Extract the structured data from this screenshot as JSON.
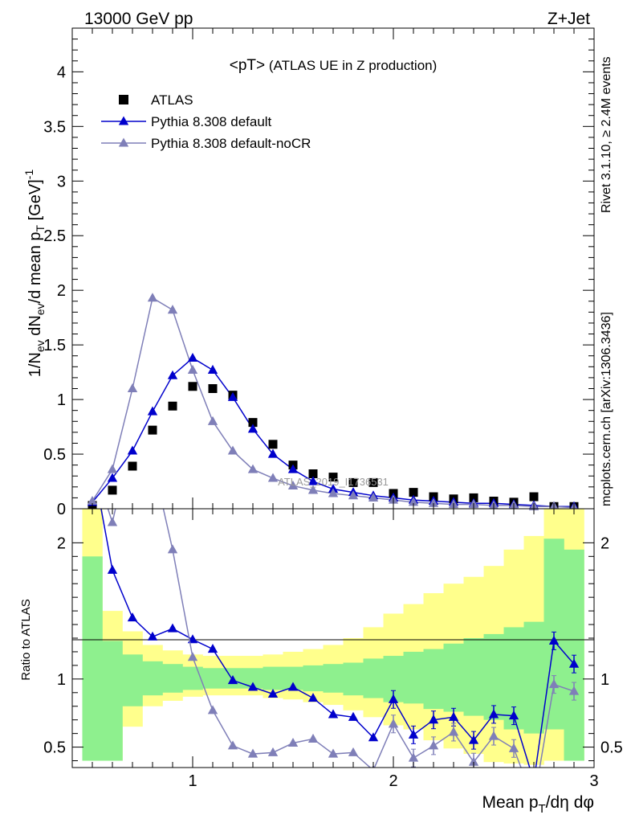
{
  "header": {
    "left": "13000 GeV pp",
    "right": "Z+Jet"
  },
  "side_labels": {
    "rivet": "Rivet 3.1.10, ≥ 2.4M events",
    "mcplots": "mcplots.cern.ch [arXiv:1306.3436]"
  },
  "chart_data": [
    {
      "type": "scatter",
      "panel": "main",
      "title": "<pT> (ATLAS UE in Z production)",
      "xlabel": "Mean p_T/dη dφ",
      "ylabel": "1/N_ev dN_ev/d mean p_T [GeV]^-1",
      "xlim": [
        0.4,
        3.0
      ],
      "ylim": [
        0,
        4.4
      ],
      "yticks": [
        0,
        0.5,
        1,
        1.5,
        2,
        2.5,
        3,
        3.5,
        4
      ],
      "ytick_labels": [
        "0",
        "0.5",
        "1",
        "1.5",
        "2",
        "2.5",
        "3",
        "3.5",
        "4"
      ],
      "watermark": "ATLAS_2019_I1736531",
      "legend_position": "top-left",
      "x": [
        0.5,
        0.6,
        0.7,
        0.8,
        0.9,
        1.0,
        1.1,
        1.2,
        1.3,
        1.4,
        1.5,
        1.6,
        1.7,
        1.8,
        1.9,
        2.0,
        2.1,
        2.2,
        2.3,
        2.4,
        2.5,
        2.6,
        2.7,
        2.8,
        2.9
      ],
      "series": [
        {
          "name": "ATLAS",
          "marker": "square",
          "color": "#000000",
          "values": [
            0.03,
            0.17,
            0.39,
            0.72,
            0.94,
            1.12,
            1.1,
            1.04,
            0.79,
            0.59,
            0.4,
            0.32,
            0.29,
            0.24,
            0.24,
            0.14,
            0.15,
            0.11,
            0.09,
            0.1,
            0.07,
            0.06,
            0.11,
            0.02,
            0.02
          ]
        },
        {
          "name": "Pythia 8.308 default",
          "marker": "triangle",
          "color": "#0000cc",
          "values": [
            0.06,
            0.28,
            0.53,
            0.89,
            1.22,
            1.38,
            1.27,
            1.02,
            0.73,
            0.5,
            0.36,
            0.25,
            0.18,
            0.15,
            0.12,
            0.1,
            0.08,
            0.07,
            0.06,
            0.05,
            0.05,
            0.04,
            0.03,
            0.02,
            0.02
          ]
        },
        {
          "name": "Pythia 8.308 default-noCR",
          "marker": "triangle",
          "color": "#7f7fb8",
          "values": [
            0.07,
            0.36,
            1.1,
            1.93,
            1.82,
            1.27,
            0.8,
            0.53,
            0.36,
            0.28,
            0.21,
            0.17,
            0.14,
            0.12,
            0.1,
            0.08,
            0.06,
            0.05,
            0.04,
            0.04,
            0.03,
            0.03,
            0.02,
            0.02,
            0.01
          ]
        }
      ]
    },
    {
      "type": "line",
      "panel": "ratio",
      "ylabel": "Ratio to ATLAS",
      "xlabel": "Mean p_T/dη dφ",
      "xlim": [
        0.4,
        3.0
      ],
      "ylim": [
        0.35,
        2.25
      ],
      "xticks": [
        1,
        2,
        3
      ],
      "xtick_labels": [
        "1",
        "2",
        "3"
      ],
      "yticks": [
        0.5,
        1,
        2
      ],
      "ytick_labels": [
        "0.5",
        "1",
        "2"
      ],
      "bin_edges": [
        0.45,
        0.55,
        0.65,
        0.75,
        0.85,
        0.95,
        1.05,
        1.15,
        1.25,
        1.35,
        1.45,
        1.55,
        1.65,
        1.75,
        1.85,
        1.95,
        2.05,
        2.15,
        2.25,
        2.35,
        2.45,
        2.55,
        2.65,
        2.75,
        2.85,
        2.95
      ],
      "bands": {
        "green_colour": "#8ef08e",
        "yellow_colour": "#ffff8c",
        "green_low": [
          0.4,
          0.4,
          0.8,
          0.88,
          0.9,
          0.92,
          0.93,
          0.93,
          0.93,
          0.92,
          0.92,
          0.91,
          0.9,
          0.88,
          0.86,
          0.83,
          0.82,
          0.78,
          0.76,
          0.73,
          0.7,
          0.63,
          0.6,
          0.63,
          0.4
        ],
        "green_high": [
          1.9,
          1.28,
          1.18,
          1.13,
          1.11,
          1.09,
          1.08,
          1.08,
          1.08,
          1.09,
          1.09,
          1.1,
          1.11,
          1.12,
          1.15,
          1.17,
          1.2,
          1.22,
          1.26,
          1.3,
          1.33,
          1.38,
          1.42,
          2.03,
          1.95
        ],
        "yellow_low": [
          0.4,
          0.4,
          0.65,
          0.8,
          0.84,
          0.87,
          0.88,
          0.88,
          0.88,
          0.86,
          0.85,
          0.83,
          0.81,
          0.77,
          0.72,
          0.66,
          0.63,
          0.55,
          0.49,
          0.45,
          0.39,
          0.38,
          0.37,
          0.4,
          0.4
        ],
        "yellow_high": [
          2.25,
          1.5,
          1.35,
          1.25,
          1.21,
          1.18,
          1.17,
          1.17,
          1.17,
          1.18,
          1.2,
          1.22,
          1.25,
          1.3,
          1.38,
          1.48,
          1.55,
          1.63,
          1.7,
          1.75,
          1.83,
          1.95,
          2.05,
          2.25,
          2.25
        ]
      },
      "x": [
        0.5,
        0.6,
        0.7,
        0.8,
        0.9,
        1.0,
        1.1,
        1.2,
        1.3,
        1.4,
        1.5,
        1.6,
        1.7,
        1.8,
        1.9,
        2.0,
        2.1,
        2.2,
        2.3,
        2.4,
        2.5,
        2.6,
        2.7,
        2.8,
        2.9
      ],
      "series": [
        {
          "name": "Pythia 8.308 default",
          "marker": "triangle",
          "color": "#0000cc",
          "values": [
            2.6,
            1.8,
            1.45,
            1.31,
            1.37,
            1.29,
            1.22,
            0.99,
            0.94,
            0.89,
            0.94,
            0.86,
            0.74,
            0.72,
            0.57,
            0.85,
            0.59,
            0.7,
            0.72,
            0.55,
            0.74,
            0.73,
            0.25,
            1.28,
            1.11
          ]
        },
        {
          "name": "Pythia 8.308 default-noCR",
          "marker": "triangle",
          "color": "#7f7fb8",
          "values": [
            2.6,
            2.15,
            2.8,
            2.6,
            1.95,
            1.16,
            0.77,
            0.51,
            0.45,
            0.46,
            0.53,
            0.56,
            0.45,
            0.46,
            0.33,
            0.67,
            0.42,
            0.51,
            0.61,
            0.39,
            0.58,
            0.49,
            0.1,
            0.96,
            0.91
          ]
        }
      ]
    }
  ]
}
